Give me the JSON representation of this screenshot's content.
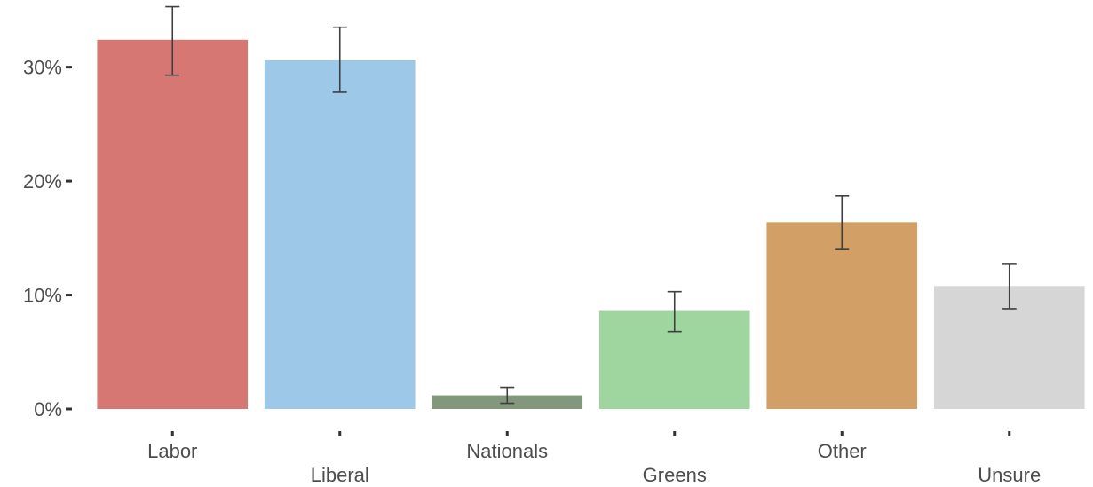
{
  "chart_data": {
    "type": "bar",
    "title": "",
    "xlabel": "",
    "ylabel": "",
    "ylim": [
      0,
      35.5
    ],
    "yticks": [
      0,
      10,
      20,
      30
    ],
    "ytick_labels": [
      "0%",
      "10%",
      "20%",
      "30%"
    ],
    "grid": false,
    "legend": "none",
    "categories": [
      "Labor",
      "Liberal",
      "Nationals",
      "Greens",
      "Other",
      "Unsure"
    ],
    "category_label_rows": [
      0,
      1,
      0,
      1,
      0,
      1
    ],
    "values": [
      32.4,
      30.6,
      1.2,
      8.6,
      16.4,
      10.8
    ],
    "error_low": [
      29.3,
      27.8,
      0.5,
      6.8,
      14.0,
      8.8
    ],
    "error_high": [
      35.3,
      33.5,
      1.9,
      10.3,
      18.7,
      12.7
    ],
    "colors": [
      "#d77773",
      "#9dc8e8",
      "#82977b",
      "#9fd6a0",
      "#d29f67",
      "#d6d6d6"
    ]
  }
}
